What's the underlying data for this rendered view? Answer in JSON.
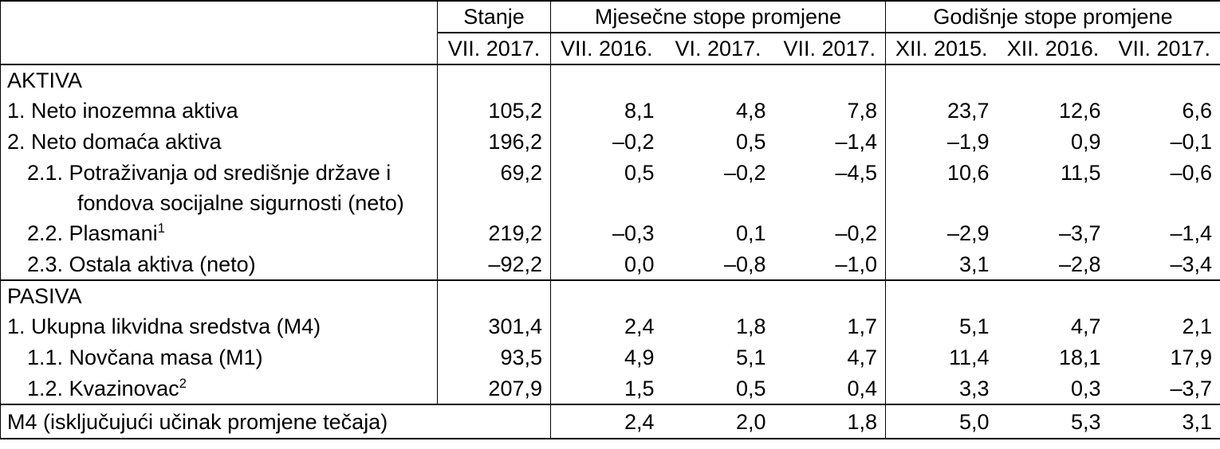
{
  "table": {
    "colors": {
      "text": "#000000",
      "background": "#ffffff",
      "border": "#000000"
    },
    "header": {
      "stanje": {
        "title": "Stanje",
        "period": "VII. 2017."
      },
      "monthly": {
        "title": "Mjesečne stope promjene",
        "periods": [
          "VII. 2016.",
          "VI. 2017.",
          "VII. 2017."
        ]
      },
      "yearly": {
        "title": "Godišnje stope promjene",
        "periods": [
          "XII. 2015.",
          "XII. 2016.",
          "VII. 2017."
        ]
      }
    },
    "rows": [
      {
        "type": "section",
        "label": "AKTIVA"
      },
      {
        "type": "data",
        "indent": 0,
        "label": "1. Neto inozemna aktiva",
        "stanje": "105,2",
        "monthly": [
          "8,1",
          "4,8",
          "7,8"
        ],
        "yearly": [
          "23,7",
          "12,6",
          "6,6"
        ]
      },
      {
        "type": "data",
        "indent": 0,
        "label": "2. Neto domaća aktiva",
        "stanje": "196,2",
        "monthly": [
          "–0,2",
          "0,5",
          "–1,4"
        ],
        "yearly": [
          "–1,9",
          "0,9",
          "–0,1"
        ]
      },
      {
        "type": "data",
        "indent": 1,
        "label_lines": [
          "2.1. Potraživanja od središnje države i",
          "fondova socijalne sigurnosti (neto)"
        ],
        "stanje": "69,2",
        "monthly": [
          "0,5",
          "–0,2",
          "–4,5"
        ],
        "yearly": [
          "10,6",
          "11,5",
          "–0,6"
        ]
      },
      {
        "type": "data",
        "indent": 1,
        "label": "2.2. Plasmani",
        "sup": "1",
        "stanje": "219,2",
        "monthly": [
          "–0,3",
          "0,1",
          "–0,2"
        ],
        "yearly": [
          "–2,9",
          "–3,7",
          "–1,4"
        ]
      },
      {
        "type": "data",
        "indent": 1,
        "label": "2.3. Ostala aktiva (neto)",
        "stanje": "–92,2",
        "monthly": [
          "0,0",
          "–0,8",
          "–1,0"
        ],
        "yearly": [
          "3,1",
          "–2,8",
          "–3,4"
        ]
      },
      {
        "type": "section",
        "label": "PASIVA",
        "separator_above": true
      },
      {
        "type": "data",
        "indent": 0,
        "label": "1. Ukupna likvidna sredstva (M4)",
        "stanje": "301,4",
        "monthly": [
          "2,4",
          "1,8",
          "1,7"
        ],
        "yearly": [
          "5,1",
          "4,7",
          "2,1"
        ]
      },
      {
        "type": "data",
        "indent": 1,
        "label": "1.1. Novčana masa (M1)",
        "stanje": "93,5",
        "monthly": [
          "4,9",
          "5,1",
          "4,7"
        ],
        "yearly": [
          "11,4",
          "18,1",
          "17,9"
        ]
      },
      {
        "type": "data",
        "indent": 1,
        "label": "1.2. Kvazinovac",
        "sup": "2",
        "stanje": "207,9",
        "monthly": [
          "1,5",
          "0,5",
          "0,4"
        ],
        "yearly": [
          "3,3",
          "0,3",
          "–3,7"
        ]
      },
      {
        "type": "footer",
        "label": "M4 (isključujući učinak promjene tečaja)",
        "stanje": "",
        "monthly": [
          "2,4",
          "2,0",
          "1,8"
        ],
        "yearly": [
          "5,0",
          "5,3",
          "3,1"
        ]
      }
    ]
  }
}
